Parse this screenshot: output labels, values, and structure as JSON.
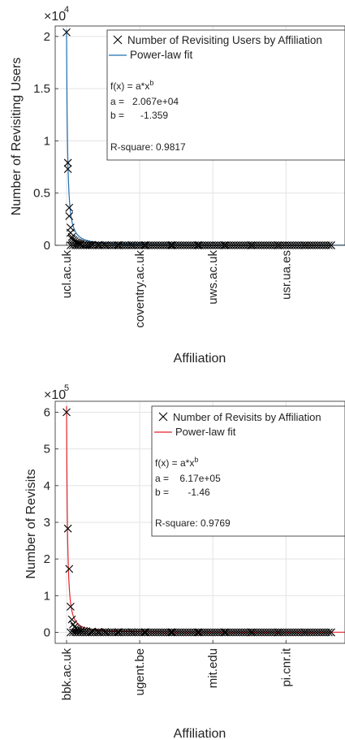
{
  "chart_data": [
    {
      "type": "scatter",
      "xlabel": "Affiliation",
      "ylabel": "Number of Revisiting Users",
      "y_exponent_label": "×10",
      "y_exponent_power": "4",
      "ylim": [
        0,
        2.1
      ],
      "yticks": [
        0,
        0.5,
        1,
        1.5,
        2
      ],
      "ytick_labels": [
        "0",
        "0.5",
        "1",
        "1.5",
        "2"
      ],
      "xlim": [
        1,
        200
      ],
      "xtick_positions": [
        1,
        56,
        111,
        166
      ],
      "xtick_labels": [
        "ucl.ac.uk",
        "coventry.ac.uk",
        "uws.ac.uk",
        "usr.ua.es"
      ],
      "grid": true,
      "legend_placement": "top-right",
      "series": [
        {
          "name": "Number of Revisiting Users by Affiliation",
          "marker": "x",
          "color": "#000000",
          "x": [
            1,
            2,
            2,
            3,
            3,
            4,
            4,
            5,
            5,
            6,
            7,
            8,
            9,
            10,
            11,
            12,
            14,
            16,
            18,
            20,
            25,
            30,
            40,
            50,
            60,
            80,
            100,
            120,
            140,
            160,
            180,
            200
          ],
          "y": [
            2.04,
            0.79,
            0.73,
            0.36,
            0.28,
            0.17,
            0.12,
            0.08,
            0.06,
            0.05,
            0.04,
            0.03,
            0.025,
            0.02,
            0.015,
            0.012,
            0.01,
            0.008,
            0.006,
            0.005,
            0.004,
            0.003,
            0.002,
            0.002,
            0.001,
            0.001,
            0.001,
            0.001,
            0.0,
            0.0,
            0.0,
            0.0
          ]
        },
        {
          "name": "Power-law fit",
          "type": "line",
          "color": "#1f6fb5",
          "a": 2.067,
          "b": -1.359
        }
      ],
      "fit_box": {
        "formula_base": "f(x) = a*x",
        "formula_sup": "b",
        "a_line": "a =   2.067e+04",
        "b_line": "b =      -1.359",
        "rsq_line": "R-square: 0.9817"
      }
    },
    {
      "type": "scatter",
      "xlabel": "Affiliation",
      "ylabel": "Number of Revisits",
      "y_exponent_label": "×10",
      "y_exponent_power": "5",
      "ylim": [
        -0.3,
        6.3
      ],
      "yticks": [
        0,
        1,
        2,
        3,
        4,
        5,
        6
      ],
      "ytick_labels": [
        "0",
        "1",
        "2",
        "3",
        "4",
        "5",
        "6"
      ],
      "xlim": [
        1,
        200
      ],
      "xtick_positions": [
        1,
        56,
        111,
        166
      ],
      "xtick_labels": [
        "bbk.ac.uk",
        "ugent.be",
        "mit.edu",
        "pi.cnr.it"
      ],
      "grid": true,
      "legend_placement": "top-right",
      "series": [
        {
          "name": "Number of Revisits by Affiliation",
          "marker": "x",
          "color": "#000000",
          "x": [
            1,
            2,
            3,
            4,
            5,
            6,
            7,
            8,
            9,
            10,
            12,
            14,
            16,
            20,
            25,
            30,
            40,
            50,
            60,
            80,
            100,
            120,
            140,
            160,
            180,
            200
          ],
          "y": [
            6.0,
            2.83,
            1.73,
            0.7,
            0.35,
            0.22,
            0.15,
            0.11,
            0.08,
            0.06,
            0.05,
            0.04,
            0.03,
            0.02,
            0.015,
            0.01,
            0.008,
            0.005,
            0.004,
            0.003,
            0.002,
            0.001,
            0.001,
            0.0,
            0.0,
            0.0
          ]
        },
        {
          "name": "Power-law fit",
          "type": "line",
          "color": "#e8202a",
          "a": 6.17,
          "b": -1.46
        }
      ],
      "fit_box": {
        "formula_base": "f(x) = a*x",
        "formula_sup": "b",
        "a_line": "a =    6.17e+05",
        "b_line": "b =       -1.46",
        "rsq_line": "R-square: 0.9769"
      }
    }
  ]
}
